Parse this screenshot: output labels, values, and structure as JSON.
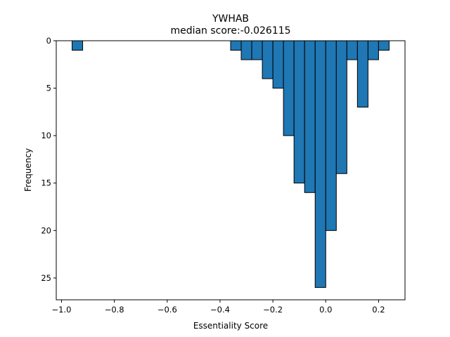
{
  "chart_data": {
    "type": "bar",
    "title": "YWHAB",
    "subtitle": "median score:-0.026115",
    "xlabel": "Essentiality Score",
    "ylabel": "Frequency",
    "xlim": [
      -1.02,
      0.3
    ],
    "ylim": [
      0,
      27.3
    ],
    "y_inverted": true,
    "grid": false,
    "bin_width": 0.04,
    "bars": [
      {
        "x0": -0.96,
        "x1": -0.92,
        "value": 1
      },
      {
        "x0": -0.36,
        "x1": -0.32,
        "value": 1
      },
      {
        "x0": -0.32,
        "x1": -0.28,
        "value": 2
      },
      {
        "x0": -0.28,
        "x1": -0.24,
        "value": 2
      },
      {
        "x0": -0.24,
        "x1": -0.2,
        "value": 4
      },
      {
        "x0": -0.2,
        "x1": -0.16,
        "value": 5
      },
      {
        "x0": -0.16,
        "x1": -0.12,
        "value": 10
      },
      {
        "x0": -0.12,
        "x1": -0.08,
        "value": 15
      },
      {
        "x0": -0.08,
        "x1": -0.04,
        "value": 16
      },
      {
        "x0": -0.04,
        "x1": 0.0,
        "value": 26
      },
      {
        "x0": 0.0,
        "x1": 0.04,
        "value": 20
      },
      {
        "x0": 0.04,
        "x1": 0.08,
        "value": 14
      },
      {
        "x0": 0.08,
        "x1": 0.12,
        "value": 2
      },
      {
        "x0": 0.12,
        "x1": 0.16,
        "value": 7
      },
      {
        "x0": 0.16,
        "x1": 0.2,
        "value": 2
      },
      {
        "x0": 0.2,
        "x1": 0.24,
        "value": 1
      }
    ],
    "x_ticks": [
      {
        "value": -1.0,
        "label": "−1.0"
      },
      {
        "value": -0.8,
        "label": "−0.8"
      },
      {
        "value": -0.6,
        "label": "−0.6"
      },
      {
        "value": -0.4,
        "label": "−0.4"
      },
      {
        "value": -0.2,
        "label": "−0.2"
      },
      {
        "value": 0.0,
        "label": "0.0"
      },
      {
        "value": 0.2,
        "label": "0.2"
      }
    ],
    "y_ticks": [
      {
        "value": 0,
        "label": "0"
      },
      {
        "value": 5,
        "label": "5"
      },
      {
        "value": 10,
        "label": "10"
      },
      {
        "value": 15,
        "label": "15"
      },
      {
        "value": 20,
        "label": "20"
      },
      {
        "value": 25,
        "label": "25"
      }
    ],
    "colors": {
      "bar_fill": "#1f77b4",
      "bar_edge": "#000000",
      "axes": "#000000"
    }
  }
}
